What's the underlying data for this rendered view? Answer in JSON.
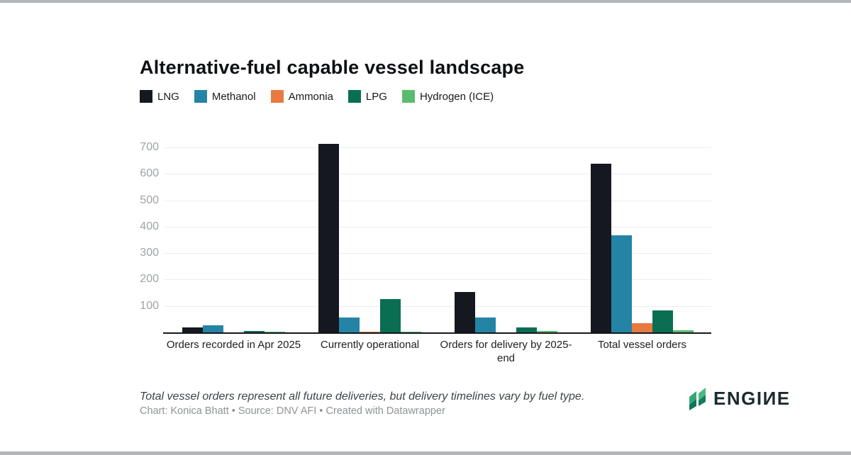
{
  "title": "Alternative-fuel capable vessel landscape",
  "chart_data": {
    "type": "bar",
    "categories": [
      "Orders recorded in Apr 2025",
      "Currently operational",
      "Orders for delivery by 2025-end",
      "Total vessel orders"
    ],
    "series": [
      {
        "name": "LNG",
        "color": "#16181f",
        "values": [
          20,
          713,
          154,
          638
        ]
      },
      {
        "name": "Methanol",
        "color": "#2484a5",
        "values": [
          26,
          56,
          56,
          368
        ]
      },
      {
        "name": "Ammonia",
        "color": "#e87a40",
        "values": [
          0,
          3,
          0,
          36
        ]
      },
      {
        "name": "LPG",
        "color": "#0a6e53",
        "values": [
          5,
          127,
          20,
          83
        ]
      },
      {
        "name": "Hydrogen (ICE)",
        "color": "#5abb6e",
        "values": [
          1,
          2,
          5,
          8
        ]
      }
    ],
    "title": "Alternative-fuel capable vessel landscape",
    "xlabel": "",
    "ylabel": "",
    "ylim": [
      0,
      700
    ],
    "yticks": [
      100,
      200,
      300,
      400,
      500,
      600,
      700
    ],
    "grid": true,
    "legend_position": "top"
  },
  "footer": {
    "note": "Total vessel orders represent all future deliveries, but delivery timelines vary by fuel type.",
    "credits": "Chart: Konica Bhatt • Source: DNV AFI • Created with Datawrapper"
  },
  "logo": {
    "text": "ENGIИE",
    "icon": "engine-leaf-icon",
    "text_color": "#1b2a31",
    "icon_colors": [
      "#34a873",
      "#11745c",
      "#4cb97e",
      "#157a5e"
    ]
  }
}
